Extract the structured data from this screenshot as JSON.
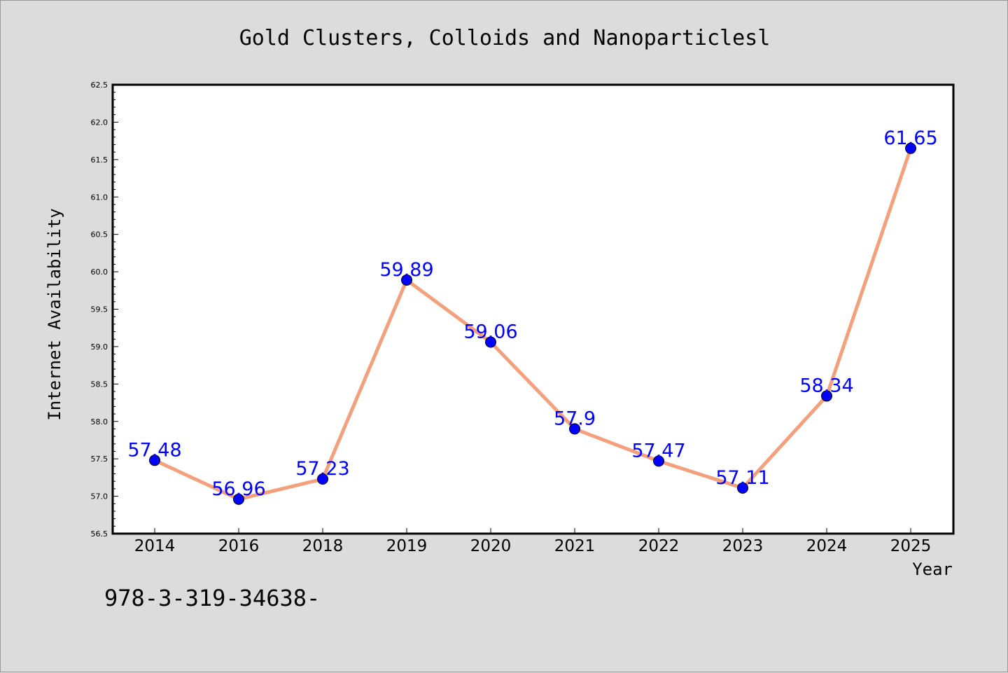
{
  "chart_data": {
    "type": "line",
    "title": "Gold Clusters, Colloids and Nanoparticlesl",
    "xlabel": "Year",
    "ylabel": "Internet Availability",
    "categories": [
      "2014",
      "2016",
      "2018",
      "2019",
      "2020",
      "2021",
      "2022",
      "2023",
      "2024",
      "2025"
    ],
    "values": [
      57.48,
      56.96,
      57.23,
      59.89,
      59.06,
      57.9,
      57.47,
      57.11,
      58.34,
      61.65
    ],
    "data_labels": [
      "57.48",
      "56.96",
      "57.23",
      "59.89",
      "59.06",
      "57.9",
      "57.47",
      "57.11",
      "58.34",
      "61.65"
    ],
    "ylim": [
      56.5,
      62.5
    ],
    "yticks": [
      "56.5",
      "57.0",
      "57.5",
      "58.0",
      "58.5",
      "59.0",
      "59.5",
      "60.0",
      "60.5",
      "61.0",
      "61.5",
      "62.0",
      "62.5"
    ],
    "grid": false,
    "line_color": "#f4a07c",
    "marker_color": "#0000ff",
    "label_color": "#0000ff",
    "plot_background": "#ffffff",
    "figure_background": "#dcdcdc"
  },
  "annotation": {
    "text": "978-3-319-34638-"
  }
}
